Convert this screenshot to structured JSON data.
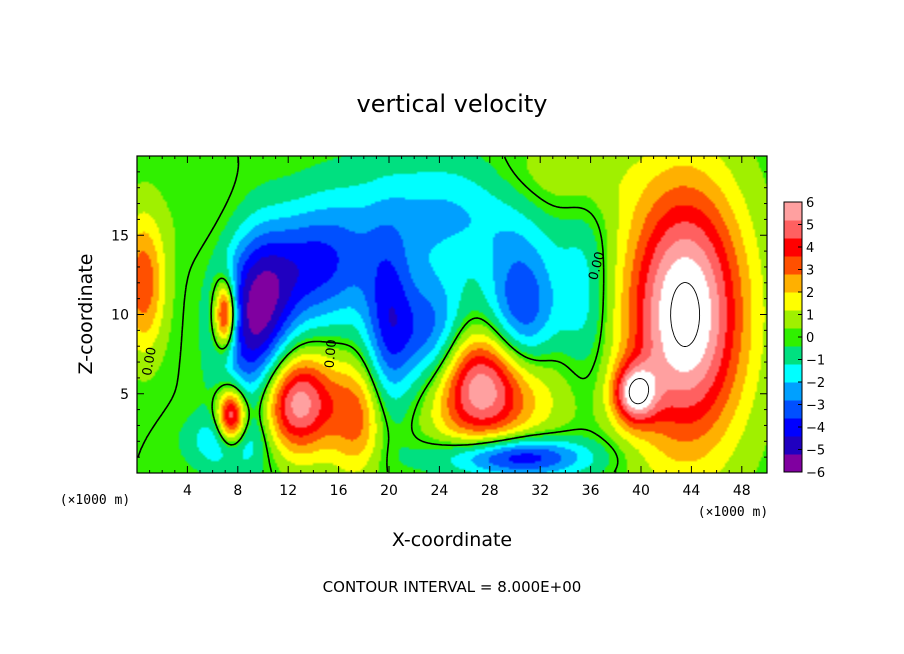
{
  "chart_data": {
    "type": "heatmap",
    "title": "vertical velocity",
    "xlabel": "X-coordinate",
    "ylabel": "Z-coordinate",
    "x_unit_label": "(×1000 m)",
    "y_unit_label": "(×1000 m)",
    "xlim": [
      0,
      50
    ],
    "ylim": [
      0,
      20
    ],
    "x_ticks": [
      4,
      8,
      12,
      16,
      20,
      24,
      28,
      32,
      36,
      40,
      44,
      48
    ],
    "y_ticks": [
      5,
      10,
      15
    ],
    "colorbar": {
      "levels": [
        -6,
        -5,
        -4,
        -3,
        -2,
        -1,
        0,
        1,
        2,
        3,
        4,
        5,
        6
      ],
      "labels": [
        "6",
        "5",
        "4",
        "3",
        "2",
        "1",
        "0",
        "−1",
        "−2",
        "−3",
        "−4",
        "−5",
        "−6"
      ],
      "colors": [
        "#8000a0",
        "#2000c0",
        "#0000ff",
        "#0050ff",
        "#00a0ff",
        "#00ffff",
        "#00e080",
        "#30f000",
        "#a0f000",
        "#ffff00",
        "#ffb000",
        "#ff5000",
        "#ff0000",
        "#ff6060",
        "#ffa0a0"
      ],
      "overflow_color": "#ffffff"
    },
    "contour_label": "0.00",
    "footer": "CONTOUR INTERVAL = 8.000E+00",
    "features": [
      {
        "kind": "updraft",
        "x": 12.5,
        "z": 4.5,
        "sx": 2.2,
        "sy": 2.3,
        "amp": 7.5
      },
      {
        "kind": "updraft",
        "x": 7.5,
        "z": 3.5,
        "sx": 0.8,
        "sy": 1.3,
        "amp": 7.5
      },
      {
        "kind": "updraft",
        "x": 7.0,
        "z": 10.0,
        "sx": 0.6,
        "sy": 1.5,
        "amp": 7.0
      },
      {
        "kind": "updraft",
        "x": 27.5,
        "z": 5.5,
        "sx": 3.6,
        "sy": 2.6,
        "amp": 8.0
      },
      {
        "kind": "updraft",
        "x": 43.5,
        "z": 10.0,
        "sx": 3.3,
        "sy": 5.8,
        "amp": 8.5
      },
      {
        "kind": "updraft",
        "x": 39.5,
        "z": 5.0,
        "sx": 1.2,
        "sy": 1.3,
        "amp": 6.0
      },
      {
        "kind": "updraft",
        "x": 0.5,
        "z": 12.0,
        "sx": 1.2,
        "sy": 3.0,
        "amp": 4.0
      },
      {
        "kind": "updraft",
        "x": 17.5,
        "z": 3.5,
        "sx": 1.5,
        "sy": 2.5,
        "amp": 3.5
      },
      {
        "kind": "downdraft",
        "x": 9.5,
        "z": 9.0,
        "sx": 2.0,
        "sy": 4.5,
        "amp": -6.0
      },
      {
        "kind": "downdraft",
        "x": 14.0,
        "z": 13.5,
        "sx": 3.5,
        "sy": 3.0,
        "amp": -5.0
      },
      {
        "kind": "downdraft",
        "x": 20.0,
        "z": 9.0,
        "sx": 1.4,
        "sy": 4.0,
        "amp": -4.0
      },
      {
        "kind": "downdraft",
        "x": 23.5,
        "z": 8.0,
        "sx": 2.0,
        "sy": 3.0,
        "amp": -5.0
      },
      {
        "kind": "downdraft",
        "x": 30.5,
        "z": 9.5,
        "sx": 2.0,
        "sy": 3.5,
        "amp": -5.0
      },
      {
        "kind": "downdraft",
        "x": 35.5,
        "z": 11.0,
        "sx": 1.5,
        "sy": 4.0,
        "amp": -2.0
      },
      {
        "kind": "downdraft",
        "x": 25.0,
        "z": 16.5,
        "sx": 5.0,
        "sy": 2.5,
        "amp": -2.5
      },
      {
        "kind": "downdraft",
        "x": 7.0,
        "z": 2.0,
        "sx": 2.0,
        "sy": 1.2,
        "amp": -2.5
      },
      {
        "kind": "downdraft",
        "x": 30.0,
        "z": 1.0,
        "sx": 4.0,
        "sy": 0.9,
        "amp": -5.5
      },
      {
        "kind": "updraft",
        "x": 10.5,
        "z": 16.0,
        "sx": 4.0,
        "sy": 2.5,
        "amp": 1.5
      },
      {
        "kind": "updraft",
        "x": 33.0,
        "z": 18.5,
        "sx": 4.0,
        "sy": 2.0,
        "amp": 1.5
      }
    ]
  }
}
